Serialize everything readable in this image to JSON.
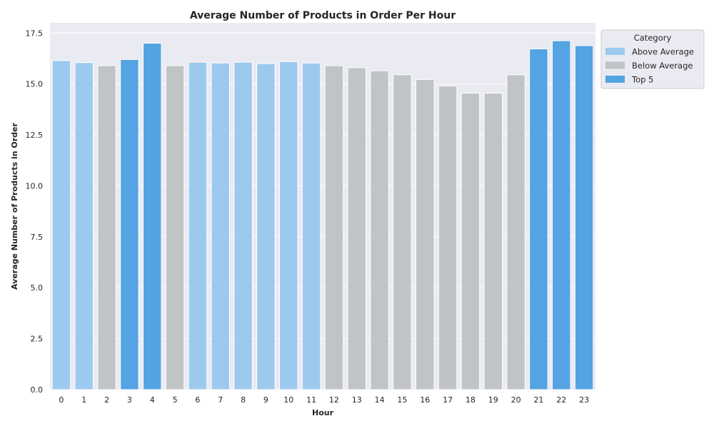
{
  "chart_data": {
    "type": "bar",
    "title": "Average Number of Products in Order Per Hour",
    "xlabel": "Hour",
    "ylabel": "Average Number of Products in Order",
    "ylim": [
      0,
      18
    ],
    "yticks": [
      "0.0",
      "2.5",
      "5.0",
      "7.5",
      "10.0",
      "12.5",
      "15.0",
      "17.5"
    ],
    "categories": [
      "0",
      "1",
      "2",
      "3",
      "4",
      "5",
      "6",
      "7",
      "8",
      "9",
      "10",
      "11",
      "12",
      "13",
      "14",
      "15",
      "16",
      "17",
      "18",
      "19",
      "20",
      "21",
      "22",
      "23"
    ],
    "values": [
      16.15,
      16.05,
      15.9,
      16.2,
      17.0,
      15.9,
      16.07,
      16.03,
      16.07,
      16.0,
      16.1,
      16.03,
      15.9,
      15.8,
      15.65,
      15.45,
      15.22,
      14.9,
      14.55,
      14.55,
      15.45,
      16.72,
      17.12,
      16.88
    ],
    "bar_categories": [
      "Above Average",
      "Above Average",
      "Below Average",
      "Top 5",
      "Top 5",
      "Below Average",
      "Above Average",
      "Above Average",
      "Above Average",
      "Above Average",
      "Above Average",
      "Above Average",
      "Below Average",
      "Below Average",
      "Below Average",
      "Below Average",
      "Below Average",
      "Below Average",
      "Below Average",
      "Below Average",
      "Below Average",
      "Top 5",
      "Top 5",
      "Top 5"
    ],
    "legend": {
      "title": "Category",
      "position": "outside-top-right",
      "entries": [
        {
          "label": "Above Average",
          "color": "#9ccaee"
        },
        {
          "label": "Below Average",
          "color": "#c1c4c6"
        },
        {
          "label": "Top 5",
          "color": "#54a3e2"
        }
      ]
    },
    "grid": true,
    "background_color": "#eaeaf2"
  }
}
